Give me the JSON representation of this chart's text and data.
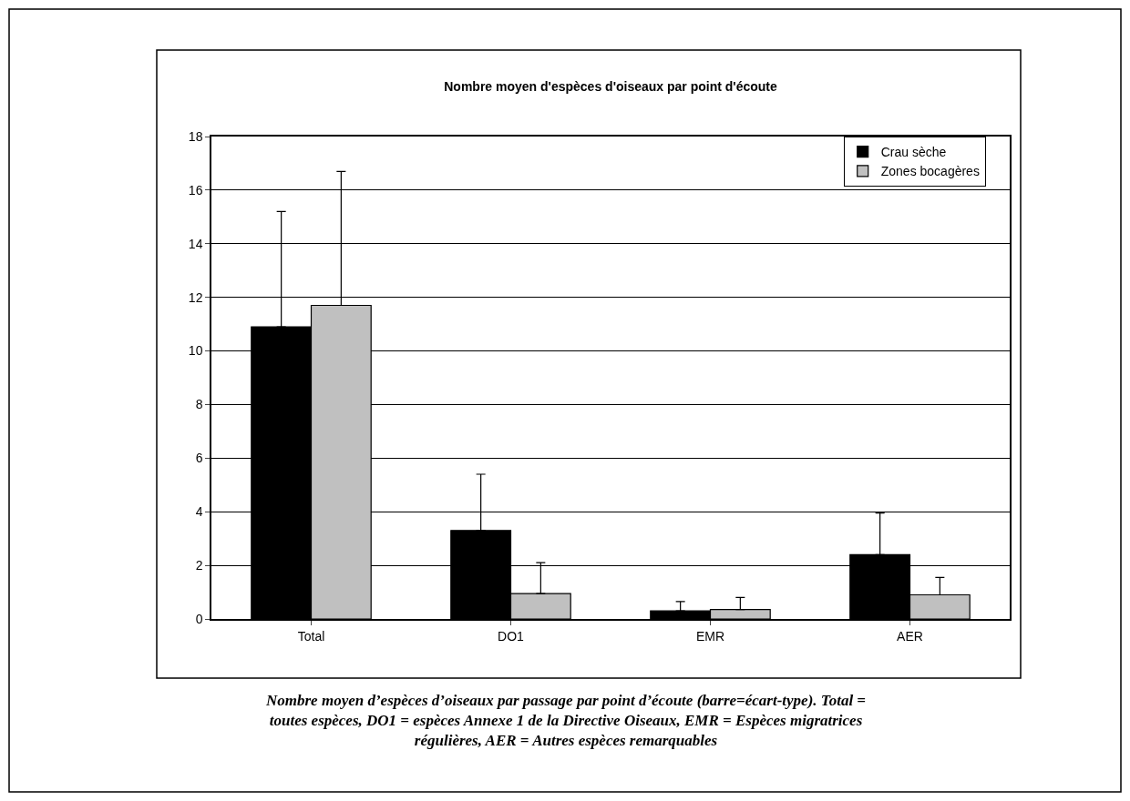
{
  "chart_data": {
    "type": "bar",
    "title": "Nombre moyen d'espèces d'oiseaux par point d'écoute",
    "categories": [
      "Total",
      "DO1",
      "EMR",
      "AER"
    ],
    "series": [
      {
        "name": "Crau sèche",
        "color": "#000000",
        "values": [
          10.9,
          3.3,
          0.3,
          2.4
        ],
        "errors": [
          [
            10.9,
            15.2
          ],
          [
            3.3,
            5.4
          ],
          [
            0.3,
            0.65
          ],
          [
            2.4,
            3.95
          ]
        ]
      },
      {
        "name": "Zones bocagères",
        "color": "#c0c0c0",
        "values": [
          11.7,
          0.95,
          0.35,
          0.9
        ],
        "errors": [
          [
            11.7,
            16.7
          ],
          [
            0.95,
            2.1
          ],
          [
            0.35,
            0.8
          ],
          [
            0.9,
            1.55
          ]
        ]
      }
    ],
    "ylim": [
      0,
      18
    ],
    "yticks": [
      0,
      2,
      4,
      6,
      8,
      10,
      12,
      14,
      16,
      18
    ],
    "grid": "y",
    "legend": "top right",
    "annotations": [
      "Nombre moyen d’espèces d’oiseaux par passage par point d’écoute (barre=écart-type). Total = toutes espèces, DO1 = espèces Annexe 1 de la Directive Oiseaux, EMR = Espèces migratrices régulières, AER = Autres espèces remarquables"
    ]
  }
}
